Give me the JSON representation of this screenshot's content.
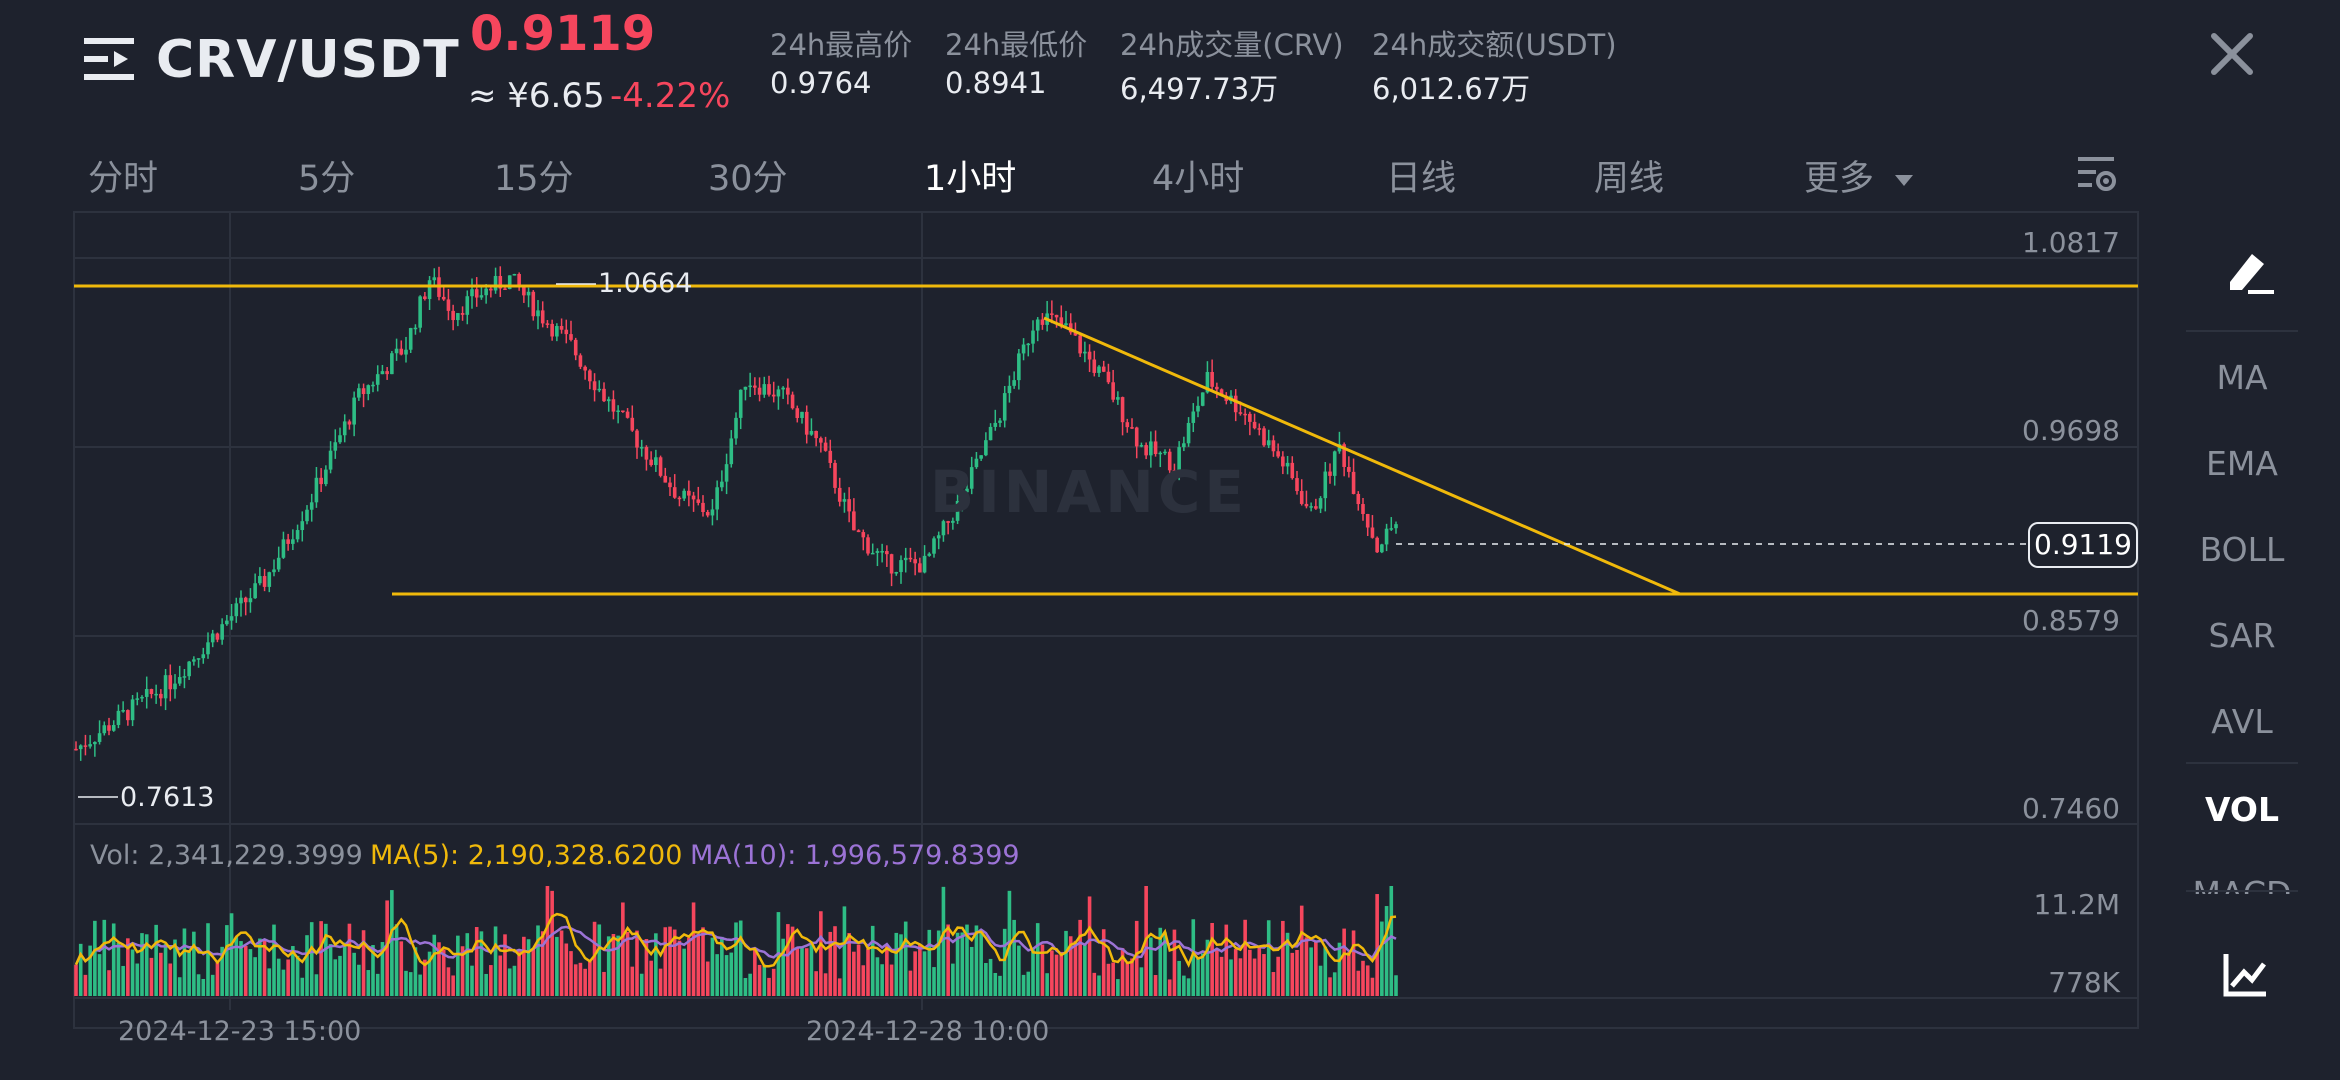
{
  "header": {
    "pair": "CRV/USDT",
    "price": "0.9119",
    "price_cny": "≈ ¥6.65",
    "change": "-4.22%",
    "stats": [
      {
        "label": "24h最高价",
        "value": "0.9764"
      },
      {
        "label": "24h最低价",
        "value": "0.8941"
      },
      {
        "label": "24h成交量(CRV)",
        "value": "6,497.73万"
      },
      {
        "label": "24h成交额(USDT)",
        "value": "6,012.67万"
      }
    ]
  },
  "tabs": [
    "分时",
    "5分",
    "15分",
    "30分",
    "1小时",
    "4小时",
    "日线",
    "周线",
    "更多"
  ],
  "active_tab": "1小时",
  "chart": {
    "price_labels": [
      "1.0817",
      "0.9698",
      "0.8579",
      "0.7460"
    ],
    "current_price": "0.9119",
    "high_label": "1.0664",
    "low_label": "0.7613",
    "watermark": "BINANCE",
    "volume": {
      "vol": "Vol: 2,341,229.3999",
      "ma5": "MA(5): 2,190,328.6200",
      "ma10": "MA(10): 1,996,579.8399",
      "axis_top": "11.2M",
      "axis_bottom": "778K"
    },
    "time_labels": [
      "2024-12-23 15:00",
      "2024-12-28 10:00"
    ],
    "colors": {
      "up": "#2ebd85",
      "down": "#f6465d",
      "trendline": "#f0b90b",
      "ma5": "#f0b90b",
      "ma10": "#9c73d6",
      "bg": "#1e222d"
    }
  },
  "sidebar": {
    "items": [
      "MA",
      "EMA",
      "BOLL",
      "SAR",
      "AVL",
      "VOL"
    ],
    "active": "VOL",
    "cut_off_item": "MACD"
  },
  "icons": {
    "menu": "menu-icon",
    "close": "close-icon",
    "settings": "chart-settings-icon",
    "draw": "draw-tool-icon",
    "indicator": "indicator-chart-icon",
    "dropdown": "dropdown-triangle-icon"
  }
}
